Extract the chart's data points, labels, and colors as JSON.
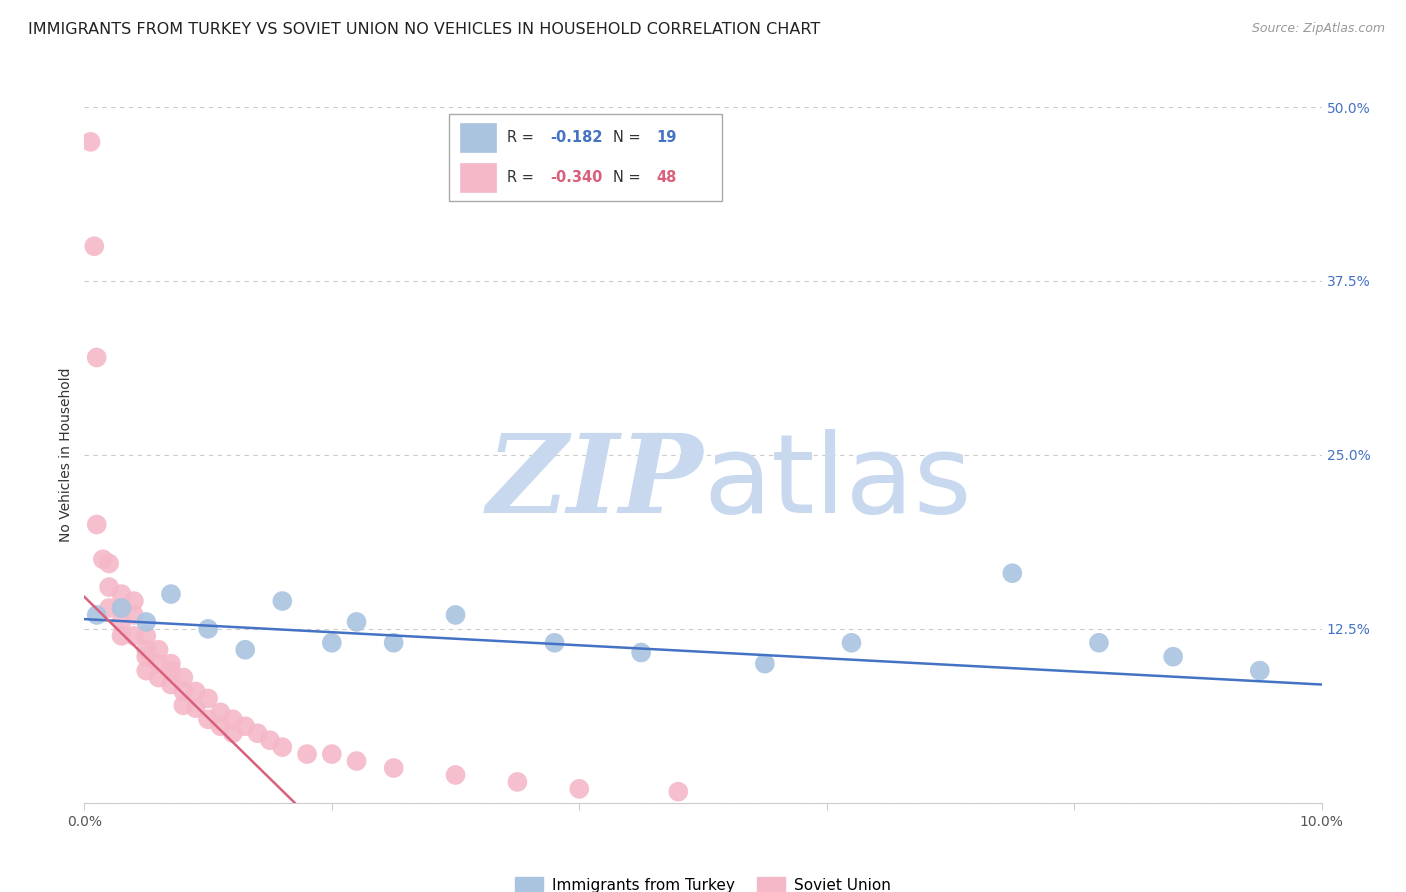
{
  "title": "IMMIGRANTS FROM TURKEY VS SOVIET UNION NO VEHICLES IN HOUSEHOLD CORRELATION CHART",
  "source": "Source: ZipAtlas.com",
  "ylabel": "No Vehicles in Household",
  "xlim": [
    0.0,
    0.1
  ],
  "ylim": [
    0.0,
    0.5
  ],
  "yticks": [
    0.0,
    0.125,
    0.25,
    0.375,
    0.5
  ],
  "ytick_labels": [
    "",
    "12.5%",
    "25.0%",
    "37.5%",
    "50.0%"
  ],
  "xticks": [
    0.0,
    0.02,
    0.04,
    0.06,
    0.08,
    0.1
  ],
  "xtick_labels": [
    "0.0%",
    "",
    "",
    "",
    "",
    "10.0%"
  ],
  "turkey_R": -0.182,
  "turkey_N": 19,
  "soviet_R": -0.34,
  "soviet_N": 48,
  "turkey_color": "#aac4e0",
  "soviet_color": "#f4b8c8",
  "turkey_line_color": "#4472c4",
  "soviet_line_color": "#d9607a",
  "watermark_zip": "ZIP",
  "watermark_atlas": "atlas",
  "watermark_color_zip": "#c8d8ee",
  "watermark_color_atlas": "#c8d8ee",
  "bg_color": "#ffffff",
  "grid_color": "#cccccc",
  "right_label_color": "#4472c4",
  "title_fontsize": 11.5,
  "axis_label_fontsize": 10,
  "tick_fontsize": 10,
  "turkey_scatter_x": [
    0.001,
    0.003,
    0.005,
    0.007,
    0.01,
    0.013,
    0.016,
    0.02,
    0.022,
    0.025,
    0.03,
    0.038,
    0.045,
    0.055,
    0.062,
    0.075,
    0.082,
    0.088,
    0.095
  ],
  "turkey_scatter_y": [
    0.135,
    0.14,
    0.13,
    0.15,
    0.125,
    0.11,
    0.145,
    0.115,
    0.13,
    0.115,
    0.135,
    0.115,
    0.108,
    0.1,
    0.115,
    0.165,
    0.115,
    0.105,
    0.095
  ],
  "soviet_scatter_x": [
    0.0005,
    0.0008,
    0.001,
    0.001,
    0.0015,
    0.002,
    0.002,
    0.002,
    0.003,
    0.003,
    0.003,
    0.003,
    0.004,
    0.004,
    0.004,
    0.005,
    0.005,
    0.005,
    0.005,
    0.006,
    0.006,
    0.006,
    0.007,
    0.007,
    0.007,
    0.008,
    0.008,
    0.008,
    0.009,
    0.009,
    0.01,
    0.01,
    0.011,
    0.011,
    0.012,
    0.012,
    0.013,
    0.014,
    0.015,
    0.016,
    0.018,
    0.02,
    0.022,
    0.025,
    0.03,
    0.035,
    0.04,
    0.048
  ],
  "soviet_scatter_y": [
    0.475,
    0.4,
    0.32,
    0.2,
    0.175,
    0.172,
    0.155,
    0.14,
    0.15,
    0.14,
    0.13,
    0.12,
    0.145,
    0.135,
    0.12,
    0.12,
    0.11,
    0.105,
    0.095,
    0.11,
    0.1,
    0.09,
    0.1,
    0.095,
    0.085,
    0.09,
    0.08,
    0.07,
    0.08,
    0.068,
    0.075,
    0.06,
    0.065,
    0.055,
    0.06,
    0.05,
    0.055,
    0.05,
    0.045,
    0.04,
    0.035,
    0.035,
    0.03,
    0.025,
    0.02,
    0.015,
    0.01,
    0.008
  ],
  "turkey_line_x": [
    0.0,
    0.1
  ],
  "turkey_line_y": [
    0.132,
    0.085
  ],
  "soviet_line_x": [
    0.0,
    0.017
  ],
  "soviet_line_y": [
    0.148,
    0.0
  ],
  "legend_turkey_label": "Immigrants from Turkey",
  "legend_soviet_label": "Soviet Union"
}
